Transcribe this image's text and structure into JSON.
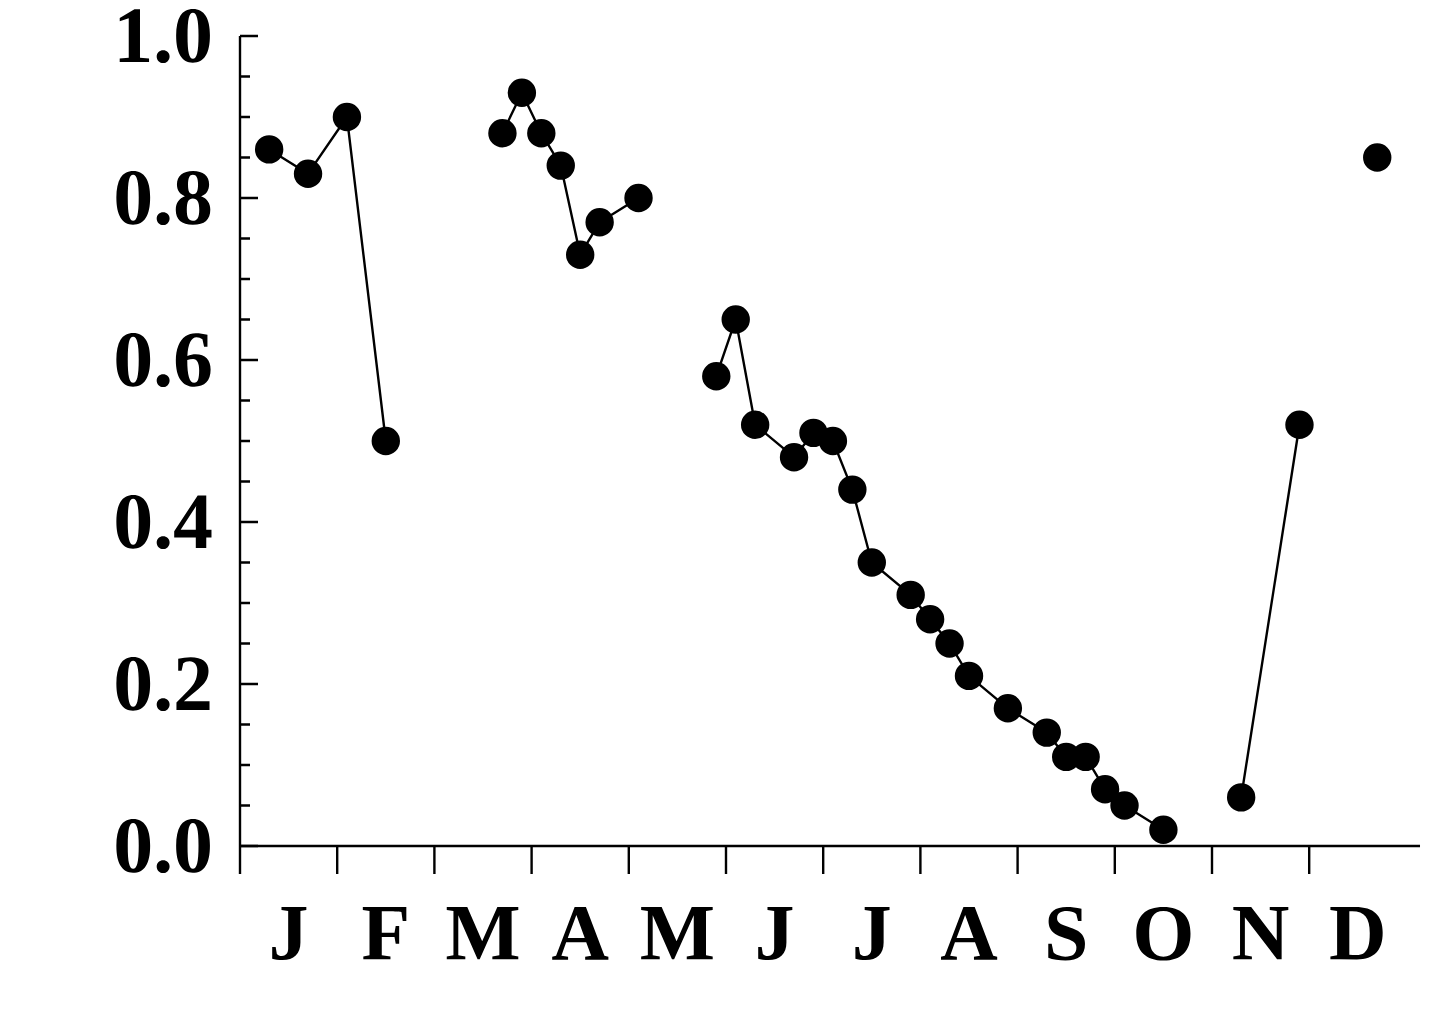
{
  "chart_data": {
    "type": "line",
    "marker": "circle",
    "line_style": "solid",
    "grid": false,
    "categories": [
      null,
      null,
      "J",
      null,
      null,
      null,
      null,
      "F",
      null,
      null,
      null,
      null,
      "M",
      null,
      null,
      null,
      null,
      "A",
      null,
      null,
      null,
      null,
      "M",
      null,
      null,
      null,
      null,
      "J",
      null,
      null,
      null,
      null,
      "J",
      null,
      null,
      null,
      null,
      "A",
      null,
      null,
      null,
      null,
      "S",
      null,
      null,
      null,
      null,
      "O",
      null,
      null,
      null,
      null,
      "N",
      null,
      null,
      null,
      null,
      "D",
      null,
      null
    ],
    "ylim": [
      0,
      1.0
    ],
    "yticks": [
      {
        "value": 0,
        "label": "0.0"
      },
      {
        "value": 0.2,
        "label": "0.2"
      },
      {
        "value": 0.4,
        "label": "0.4"
      },
      {
        "value": 0.6,
        "label": "0.6"
      },
      {
        "value": 0.8,
        "label": "0.8"
      },
      {
        "value": 1.0,
        "label": "1.0"
      }
    ],
    "series": [
      {
        "color": "#000000",
        "values": [
          null,
          0.86,
          null,
          0.83,
          null,
          0.9,
          null,
          0.5,
          null,
          null,
          null,
          null,
          null,
          null,
          null,
          null,
          null,
          null,
          null,
          null,
          null,
          null,
          null,
          null,
          null,
          null,
          null,
          null,
          null,
          null,
          null,
          null,
          null,
          null,
          null,
          null,
          null,
          null,
          null,
          null,
          null,
          null,
          null,
          null,
          null,
          null,
          null,
          null,
          null,
          null,
          null,
          null,
          null,
          null,
          null,
          null,
          null,
          null,
          null,
          null
        ]
      },
      {
        "color": "#000000",
        "values": [
          null,
          null,
          null,
          null,
          null,
          null,
          null,
          null,
          null,
          null,
          null,
          null,
          null,
          0.88,
          0.93,
          0.88,
          0.84,
          0.73,
          0.77,
          null,
          0.8,
          null,
          null,
          null,
          null,
          null,
          null,
          null,
          null,
          null,
          null,
          null,
          null,
          null,
          null,
          null,
          null,
          null,
          null,
          null,
          null,
          null,
          null,
          null,
          null,
          null,
          null,
          null,
          null,
          null,
          null,
          null,
          null,
          null,
          null,
          null,
          null,
          null,
          null,
          null
        ]
      },
      {
        "color": "#000000",
        "values": [
          null,
          null,
          null,
          null,
          null,
          null,
          null,
          null,
          null,
          null,
          null,
          null,
          null,
          null,
          null,
          null,
          null,
          null,
          null,
          null,
          null,
          null,
          null,
          null,
          0.58,
          0.65,
          0.52,
          null,
          0.48,
          0.51,
          0.5,
          0.44,
          0.35,
          null,
          0.31,
          0.28,
          0.25,
          0.21,
          null,
          0.17,
          null,
          0.14,
          0.11,
          0.11,
          0.07,
          0.05,
          null,
          0.02,
          null,
          null,
          null,
          null,
          null,
          null,
          null,
          null,
          null,
          null,
          null,
          null
        ]
      },
      {
        "color": "#000000",
        "values": [
          null,
          null,
          null,
          null,
          null,
          null,
          null,
          null,
          null,
          null,
          null,
          null,
          null,
          null,
          null,
          null,
          null,
          null,
          null,
          null,
          null,
          null,
          null,
          null,
          null,
          null,
          null,
          null,
          null,
          null,
          null,
          null,
          null,
          null,
          null,
          null,
          null,
          null,
          null,
          null,
          null,
          null,
          null,
          null,
          null,
          null,
          null,
          null,
          null,
          null,
          null,
          0.06,
          null,
          null,
          0.52,
          null,
          null,
          null,
          null,
          null
        ]
      },
      {
        "color": "#000000",
        "values": [
          null,
          null,
          null,
          null,
          null,
          null,
          null,
          null,
          null,
          null,
          null,
          null,
          null,
          null,
          null,
          null,
          null,
          null,
          null,
          null,
          null,
          null,
          null,
          null,
          null,
          null,
          null,
          null,
          null,
          null,
          null,
          null,
          null,
          null,
          null,
          null,
          null,
          null,
          null,
          null,
          null,
          null,
          null,
          null,
          null,
          null,
          null,
          null,
          null,
          null,
          null,
          null,
          null,
          null,
          null,
          null,
          null,
          null,
          0.85,
          null
        ]
      }
    ]
  }
}
